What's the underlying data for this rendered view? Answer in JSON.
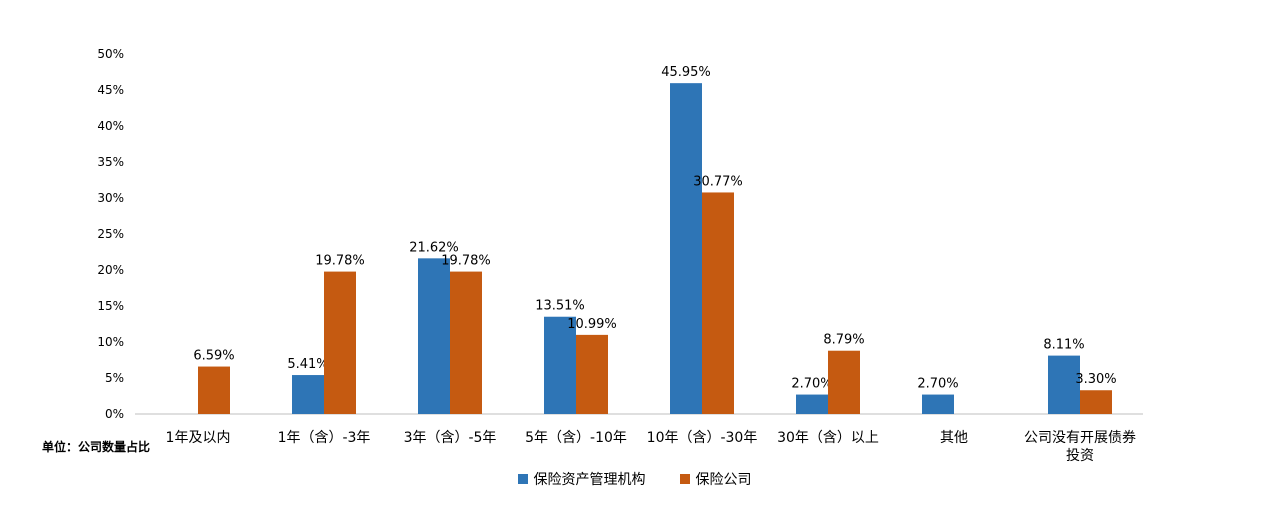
{
  "unit_label": "单位：公司数量占比",
  "colors": {
    "series1": "#2E75B6",
    "series2": "#C55A11",
    "axis": "#BFBFBF"
  },
  "chart_data": {
    "type": "bar",
    "categories": [
      [
        "1年及以内"
      ],
      [
        "1年（含）-3年"
      ],
      [
        "3年（含）-5年"
      ],
      [
        "5年（含）-10年"
      ],
      [
        "10年（含）-30年"
      ],
      [
        "30年（含）以上"
      ],
      [
        "其他"
      ],
      [
        "公司没有开展债券",
        "投资"
      ]
    ],
    "series": [
      {
        "name": "保险资产管理机构",
        "values": [
          null,
          5.41,
          21.62,
          13.51,
          45.95,
          2.7,
          2.7,
          8.11
        ],
        "labels": [
          null,
          "5.41%",
          "21.62%",
          "13.51%",
          "45.95%",
          "2.70%",
          "2.70%",
          "8.11%"
        ]
      },
      {
        "name": "保险公司",
        "values": [
          6.59,
          19.78,
          19.78,
          10.99,
          30.77,
          8.79,
          null,
          3.3
        ],
        "labels": [
          "6.59%",
          "19.78%",
          "19.78%",
          "10.99%",
          "30.77%",
          "8.79%",
          null,
          "3.30%"
        ]
      }
    ],
    "ylim": [
      0,
      50
    ],
    "yticks": [
      "0%",
      "5%",
      "10%",
      "15%",
      "20%",
      "25%",
      "30%",
      "35%",
      "40%",
      "45%",
      "50%"
    ],
    "grid": false,
    "legend": "bottom"
  }
}
